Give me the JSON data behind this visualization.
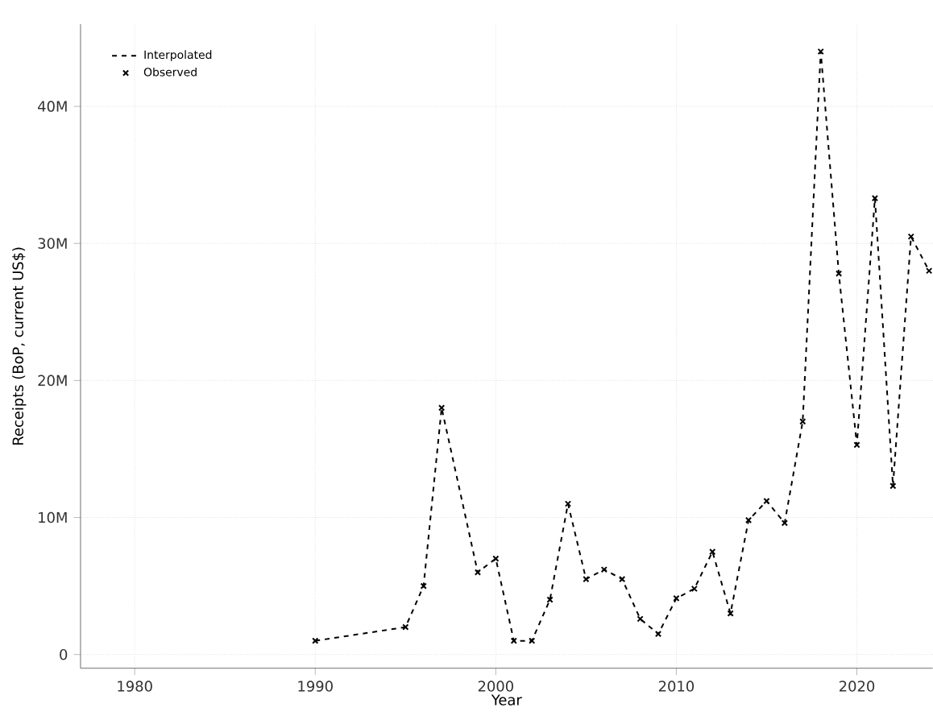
{
  "chart_data": {
    "type": "line",
    "xlabel": "Year",
    "ylabel": "Receipts (BoP, current US$)",
    "x": [
      1990,
      1995,
      1996,
      1997,
      1999,
      2000,
      2001,
      2002,
      2003,
      2004,
      2005,
      2006,
      2007,
      2008,
      2009,
      2010,
      2011,
      2012,
      2013,
      2014,
      2015,
      2016,
      2017,
      2018,
      2019,
      2020,
      2021,
      2022,
      2023,
      2024
    ],
    "series": [
      {
        "name": "Interpolated",
        "line_style": "dashed",
        "marker": "none",
        "color": "#000000",
        "values": [
          1000000,
          2000000,
          5000000,
          18000000,
          6000000,
          7000000,
          1000000,
          1000000,
          4000000,
          11000000,
          5500000,
          6200000,
          5500000,
          2600000,
          1500000,
          4100000,
          4800000,
          7500000,
          3000000,
          9800000,
          11200000,
          9600000,
          17000000,
          44000000,
          27800000,
          15300000,
          33300000,
          12300000,
          30500000,
          28000000
        ]
      },
      {
        "name": "Observed",
        "type": "scatter",
        "marker": "cross",
        "color": "#000000",
        "values": [
          1000000,
          2000000,
          5000000,
          18000000,
          6000000,
          7000000,
          1000000,
          1000000,
          4000000,
          11000000,
          5500000,
          6200000,
          5500000,
          2600000,
          1500000,
          4100000,
          4800000,
          7500000,
          3000000,
          9800000,
          11200000,
          9600000,
          17000000,
          44000000,
          27800000,
          15300000,
          33300000,
          12300000,
          30500000,
          28000000
        ]
      }
    ],
    "xlim": [
      1977,
      2024.2
    ],
    "ylim": [
      -1000000,
      46000000
    ],
    "xticks": [
      1980,
      1990,
      2000,
      2010,
      2020
    ],
    "yticks": [
      0,
      {
        "value": 10000000,
        "label": "10M"
      },
      {
        "value": 20000000,
        "label": "20M"
      },
      {
        "value": 30000000,
        "label": "30M"
      },
      {
        "value": 40000000,
        "label": "40M"
      }
    ],
    "grid": true,
    "legend": "top left"
  }
}
